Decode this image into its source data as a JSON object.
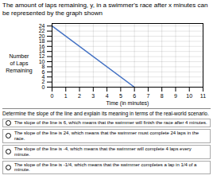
{
  "chart_data": {
    "type": "line",
    "title": "The amount of laps remaining, y, in a swimmer's race after x minutes can be represented by the graph shown",
    "xlabel": "Time (in minutes)",
    "ylabel": "Number\nof Laps\nRemaining",
    "x": [
      0,
      6
    ],
    "values": [
      24,
      0
    ],
    "color": "#4472c4",
    "xlim": [
      0,
      11
    ],
    "ylim": [
      0,
      25
    ],
    "xticks": [
      0,
      1,
      2,
      3,
      4,
      5,
      6,
      7,
      8,
      9,
      10,
      11
    ],
    "yticks": [
      0,
      2,
      4,
      6,
      8,
      10,
      12,
      14,
      16,
      18,
      20,
      22,
      24
    ],
    "grid": true,
    "annotations": [
      "Determine the slope of the line and explain its meaning in terms of the real-world scenario.",
      "The slope of the line is 6, which means that the swimmer will finish the race after 4 minutes.",
      "The slope of the line is 24, which means that the swimmer must complete 24 laps in the race.",
      "The slope of the line is -4, which means that the swimmer will complete 4 laps every minute.",
      "The slope of the line is -1/4, which means that the swimmer completes a lap in 1/4 of a minute."
    ]
  }
}
